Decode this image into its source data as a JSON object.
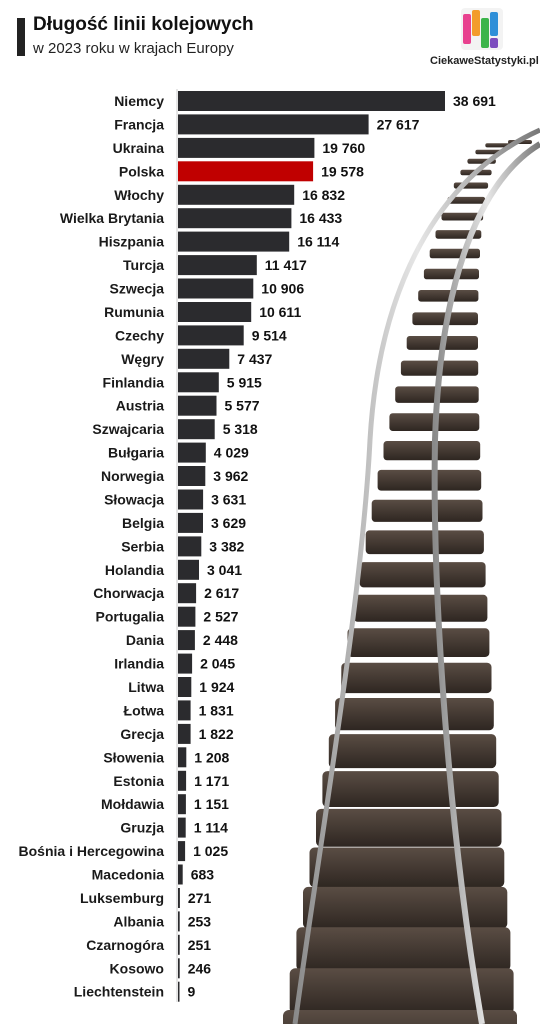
{
  "header": {
    "title": "Długość linii kolejowych",
    "subtitle": "w 2023 roku w krajach Europy"
  },
  "logo": {
    "text": "CiekaweStatystyki.pl",
    "colors": [
      "#e8418f",
      "#f39c2b",
      "#3bb44a",
      "#2f8fd8",
      "#7c4dbe"
    ]
  },
  "colors": {
    "bar": "#2b2b2e",
    "highlight": "#c00000",
    "highlight_label": "#c00000"
  },
  "chart_data": {
    "type": "bar",
    "orientation": "horizontal",
    "title": "Długość linii kolejowych",
    "subtitle": "w 2023 roku w krajach Europy",
    "xlabel": "",
    "ylabel": "",
    "xlim": [
      0,
      38691
    ],
    "grid": false,
    "highlight": "Polska",
    "categories": [
      "Niemcy",
      "Francja",
      "Ukraina",
      "Polska",
      "Włochy",
      "Wielka Brytania",
      "Hiszpania",
      "Turcja",
      "Szwecja",
      "Rumunia",
      "Czechy",
      "Węgry",
      "Finlandia",
      "Austria",
      "Szwajcaria",
      "Bułgaria",
      "Norwegia",
      "Słowacja",
      "Belgia",
      "Serbia",
      "Holandia",
      "Chorwacja",
      "Portugalia",
      "Dania",
      "Irlandia",
      "Litwa",
      "Łotwa",
      "Grecja",
      "Słowenia",
      "Estonia",
      "Mołdawia",
      "Gruzja",
      "Bośnia i Hercegowina",
      "Macedonia",
      "Luksemburg",
      "Albania",
      "Czarnogóra",
      "Kosowo",
      "Liechtenstein"
    ],
    "values": [
      38691,
      27617,
      19760,
      19578,
      16832,
      16433,
      16114,
      11417,
      10906,
      10611,
      9514,
      7437,
      5915,
      5577,
      5318,
      4029,
      3962,
      3631,
      3629,
      3382,
      3041,
      2617,
      2527,
      2448,
      2045,
      1924,
      1831,
      1822,
      1208,
      1171,
      1151,
      1114,
      1025,
      683,
      271,
      253,
      251,
      246,
      9
    ],
    "value_labels": [
      "38 691",
      "27 617",
      "19 760",
      "19 578",
      "16 832",
      "16 433",
      "16 114",
      "11 417",
      "10 906",
      "10 611",
      "9 514",
      "7 437",
      "5 915",
      "5 577",
      "5 318",
      "4 029",
      "3 962",
      "3 631",
      "3 629",
      "3 382",
      "3 041",
      "2 617",
      "2 527",
      "2 448",
      "2 045",
      "1 924",
      "1 831",
      "1 822",
      "1 208",
      "1 171",
      "1 151",
      "1 114",
      "1 025",
      "683",
      "271",
      "253",
      "251",
      "246",
      "9"
    ]
  }
}
